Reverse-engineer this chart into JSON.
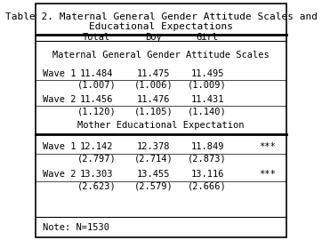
{
  "title_line1": "Table 2. Maternal General Gender Attitude Scales and",
  "title_line2": "Educational Expectations",
  "col_headers": [
    "",
    "Total",
    "Boy",
    "Girl",
    ""
  ],
  "section1_label": "Maternal General Gender Attitude Scales",
  "section2_label": "Mother Educational Expectation",
  "rows": [
    {
      "label": "Wave 1",
      "vals": [
        "11.484",
        "11.475",
        "11.495"
      ],
      "sig": ""
    },
    {
      "label": "",
      "vals": [
        "(1.007)",
        "(1.006)",
        "(1.009)"
      ],
      "sig": ""
    },
    {
      "label": "Wave 2",
      "vals": [
        "11.456",
        "11.476",
        "11.431"
      ],
      "sig": ""
    },
    {
      "label": "",
      "vals": [
        "(1.120)",
        "(1.105)",
        "(1.140)"
      ],
      "sig": ""
    },
    {
      "label": "Wave 1",
      "vals": [
        "12.142",
        "12.378",
        "11.849"
      ],
      "sig": "***"
    },
    {
      "label": "",
      "vals": [
        "(2.797)",
        "(2.714)",
        "(2.873)"
      ],
      "sig": ""
    },
    {
      "label": "Wave 2",
      "vals": [
        "13.303",
        "13.455",
        "13.116"
      ],
      "sig": "***"
    },
    {
      "label": "",
      "vals": [
        "(2.623)",
        "(2.579)",
        "(2.666)"
      ],
      "sig": ""
    }
  ],
  "note": "Note: N=1530",
  "bg_color": "#ffffff",
  "border_color": "#000000",
  "text_color": "#000000",
  "font_size": 7.5,
  "title_font_size": 8.0
}
